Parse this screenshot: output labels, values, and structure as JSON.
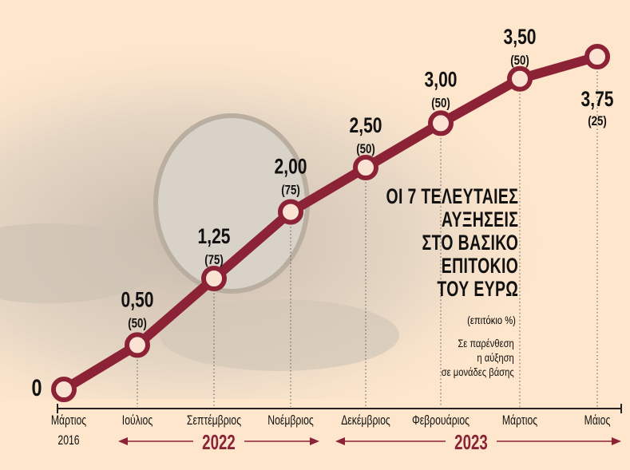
{
  "chart_data": {
    "type": "line",
    "title": "ΟΙ 7 ΤΕΛΕΥΤΑΙΕΣ ΑΥΞΗΣΕΙΣ ΣΤΟ ΒΑΣΙΚΟ ΕΠΙΤΟΚΙΟ ΤΟΥ ΕΥΡΩ",
    "title_lines": [
      "ΟΙ 7 ΤΕΛΕΥΤΑΙΕΣ",
      "ΑΥΞΗΣΕΙΣ",
      "ΣΤΟ ΒΑΣΙΚΟ",
      "ΕΠΙΤΟΚΙΟ",
      "ΤΟΥ ΕΥΡΩ"
    ],
    "ylabel": "(επιτόκιο %)",
    "note_lines": [
      "Σε παρένθεση",
      "η αύξηση",
      "σε μονάδες βάσης"
    ],
    "categories": [
      "Μάρτιος",
      "Ιούλιος",
      "Σεπτέμβριος",
      "Νοέμβριος",
      "Δεκέμβριος",
      "Φεβρουάριος",
      "Μάρτιος",
      "Μάιος"
    ],
    "category_sublabel": "2016",
    "year_groups": [
      {
        "label": "2022"
      },
      {
        "label": "2023"
      }
    ],
    "values": [
      0,
      0.5,
      1.25,
      2.0,
      2.5,
      3.0,
      3.5,
      3.75
    ],
    "value_labels": [
      "0",
      "0,50",
      "1,25",
      "2,00",
      "2,50",
      "3,00",
      "3,50",
      "3,75"
    ],
    "increase_labels": [
      "",
      "(50)",
      "(75)",
      "(75)",
      "(50)",
      "(50)",
      "(50)",
      "(25)"
    ],
    "ylim": [
      0,
      3.75
    ],
    "grid": false,
    "line_color": "#8c2236",
    "background_color": "#fde6cc"
  }
}
